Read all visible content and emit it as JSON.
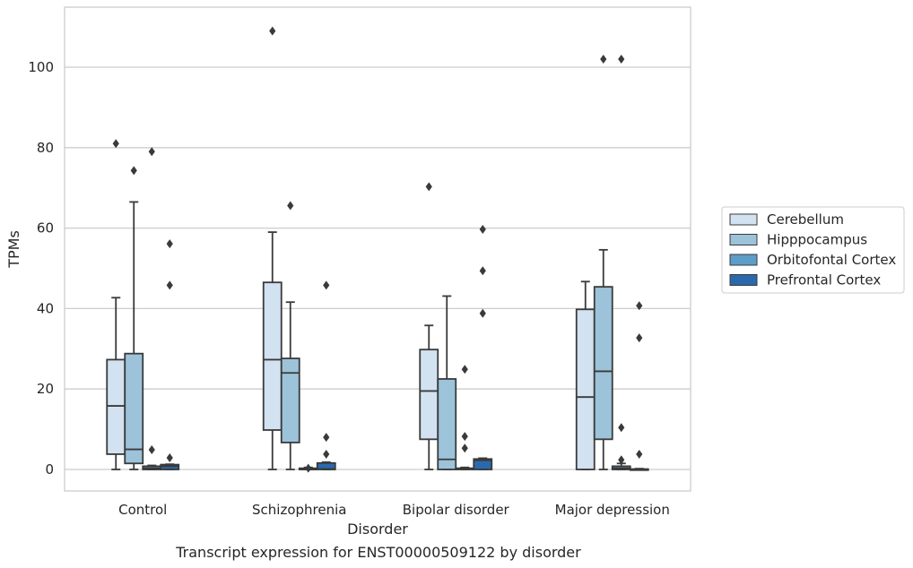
{
  "chart_data": {
    "type": "box",
    "caption": "Transcript expression for ENST00000509122 by disorder",
    "xlabel": "Disorder",
    "ylabel": "TPMs",
    "ylim": [
      -5,
      115
    ],
    "yticks": [
      0,
      20,
      40,
      60,
      80,
      100
    ],
    "grid": "horizontal",
    "legend_placement": "right",
    "categories": [
      "Control",
      "Schizophrenia",
      "Bipolar disorder",
      "Major depression"
    ],
    "series": [
      {
        "name": "Cerebellum",
        "color": "#d2e2f1",
        "boxes": [
          {
            "whisker_low": 0,
            "q1": 3.8,
            "median": 15.8,
            "q3": 27.3,
            "whisker_high": 42.7,
            "outliers": [
              81.0
            ]
          },
          {
            "whisker_low": 0,
            "q1": 9.8,
            "median": 27.3,
            "q3": 46.5,
            "whisker_high": 59.0,
            "outliers": [
              109.0
            ]
          },
          {
            "whisker_low": 0,
            "q1": 7.5,
            "median": 19.5,
            "q3": 29.8,
            "whisker_high": 35.8,
            "outliers": [
              70.3
            ]
          },
          {
            "whisker_low": 0,
            "q1": 0,
            "median": 18.0,
            "q3": 39.8,
            "whisker_high": 46.7,
            "outliers": []
          }
        ]
      },
      {
        "name": "Hipppocampus",
        "color": "#9cc3da",
        "boxes": [
          {
            "whisker_low": 0,
            "q1": 1.5,
            "median": 5.0,
            "q3": 28.8,
            "whisker_high": 66.5,
            "outliers": [
              74.3
            ]
          },
          {
            "whisker_low": 0,
            "q1": 6.7,
            "median": 24.0,
            "q3": 27.6,
            "whisker_high": 41.6,
            "outliers": [
              65.6
            ]
          },
          {
            "whisker_low": 0,
            "q1": 0,
            "median": 2.5,
            "q3": 22.5,
            "whisker_high": 43.1,
            "outliers": []
          },
          {
            "whisker_low": 0,
            "q1": 7.5,
            "median": 24.4,
            "q3": 45.4,
            "whisker_high": 54.6,
            "outliers": [
              102.0
            ]
          }
        ]
      },
      {
        "name": "Orbitofontal Cortex",
        "color": "#5f9dc9",
        "boxes": [
          {
            "whisker_low": 0,
            "q1": 0,
            "median": 0.3,
            "q3": 0.8,
            "whisker_high": 1.0,
            "outliers": [
              4.9,
              79.0
            ]
          },
          {
            "whisker_low": 0,
            "q1": 0,
            "median": 0,
            "q3": 0.3,
            "whisker_high": 0.5,
            "outliers": [
              0.3
            ]
          },
          {
            "whisker_low": 0,
            "q1": 0,
            "median": 0.2,
            "q3": 0.3,
            "whisker_high": 0.5,
            "outliers": [
              5.3,
              8.2,
              24.9
            ]
          },
          {
            "whisker_low": 0,
            "q1": 0,
            "median": 0.3,
            "q3": 0.8,
            "whisker_high": 1.5,
            "outliers": [
              2.4,
              10.4,
              102.0
            ]
          }
        ]
      },
      {
        "name": "Prefrontal Cortex",
        "color": "#2a6aac",
        "boxes": [
          {
            "whisker_low": 0,
            "q1": 0,
            "median": 0.8,
            "q3": 1.2,
            "whisker_high": 1.3,
            "outliers": [
              2.9,
              45.8,
              56.1
            ]
          },
          {
            "whisker_low": 0,
            "q1": 0,
            "median": 0.1,
            "q3": 1.6,
            "whisker_high": 1.8,
            "outliers": [
              3.8,
              8.0,
              45.8
            ]
          },
          {
            "whisker_low": 0,
            "q1": 0,
            "median": 2.3,
            "q3": 2.6,
            "whisker_high": 2.8,
            "outliers": [
              38.8,
              49.4,
              59.7
            ]
          },
          {
            "whisker_low": 0,
            "q1": 0,
            "median": 0,
            "q3": 0.1,
            "whisker_high": 0.2,
            "outliers": [
              3.8,
              32.7,
              40.7
            ]
          }
        ]
      }
    ]
  }
}
